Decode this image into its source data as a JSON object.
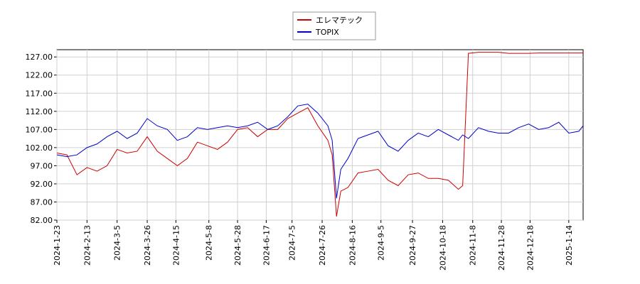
{
  "chart_data": {
    "type": "line",
    "x": [
      "2024-01-23",
      "2024-01-30",
      "2024-02-06",
      "2024-02-13",
      "2024-02-20",
      "2024-02-27",
      "2024-03-05",
      "2024-03-12",
      "2024-03-19",
      "2024-03-26",
      "2024-04-02",
      "2024-04-09",
      "2024-04-16",
      "2024-04-23",
      "2024-04-30",
      "2024-05-07",
      "2024-05-14",
      "2024-05-21",
      "2024-05-28",
      "2024-06-04",
      "2024-06-11",
      "2024-06-18",
      "2024-06-25",
      "2024-07-02",
      "2024-07-09",
      "2024-07-16",
      "2024-07-23",
      "2024-07-30",
      "2024-08-02",
      "2024-08-05",
      "2024-08-08",
      "2024-08-13",
      "2024-08-20",
      "2024-08-27",
      "2024-09-03",
      "2024-09-10",
      "2024-09-17",
      "2024-09-24",
      "2024-10-01",
      "2024-10-08",
      "2024-10-15",
      "2024-10-22",
      "2024-10-29",
      "2024-11-01",
      "2024-11-05",
      "2024-11-12",
      "2024-11-19",
      "2024-11-26",
      "2024-12-03",
      "2024-12-10",
      "2024-12-17",
      "2024-12-24",
      "2024-12-31",
      "2025-01-07",
      "2025-01-14",
      "2025-01-21",
      "2025-01-24"
    ],
    "series": [
      {
        "name": "エレマテック",
        "color": "#cc0000",
        "values": [
          100.5,
          100,
          94.5,
          96.5,
          95.5,
          97,
          101.5,
          100.5,
          101,
          105,
          101,
          99,
          97,
          99,
          103.5,
          102.5,
          101.5,
          103.5,
          107,
          107.5,
          105,
          107,
          107,
          110,
          111.5,
          113,
          108,
          104,
          100,
          83,
          90,
          91,
          95,
          95.5,
          96,
          93,
          91.5,
          94.5,
          95,
          93.5,
          93.5,
          93,
          90.5,
          91.5,
          128,
          128.3,
          128.3,
          128.3,
          128,
          128,
          128,
          128.1,
          128.1,
          128.1,
          128.1,
          128.1,
          128.1
        ]
      },
      {
        "name": "TOPIX",
        "color": "#0000cc",
        "values": [
          100,
          99.5,
          100,
          102,
          103,
          105,
          106.5,
          104.5,
          106,
          110,
          108,
          107,
          104,
          105,
          107.5,
          107,
          107.5,
          108,
          107.5,
          108,
          109,
          107,
          108,
          110.5,
          113.5,
          114,
          111.5,
          108,
          104,
          88,
          96,
          99,
          104.5,
          105.5,
          106.5,
          102.5,
          101,
          104,
          106,
          105,
          107,
          105.5,
          104,
          105.5,
          104.5,
          107.5,
          106.5,
          106,
          106,
          107.5,
          108.5,
          107,
          107.5,
          109,
          106,
          106.5,
          108
        ]
      }
    ],
    "xlim": [
      "2024-01-23",
      "2025-01-24"
    ],
    "xticks": [
      {
        "value": "2024-01-23",
        "label": "2024-1-23"
      },
      {
        "value": "2024-02-13",
        "label": "2024-2-13"
      },
      {
        "value": "2024-03-05",
        "label": "2024-3-5"
      },
      {
        "value": "2024-03-26",
        "label": "2024-3-26"
      },
      {
        "value": "2024-04-15",
        "label": "2024-4-15"
      },
      {
        "value": "2024-05-08",
        "label": "2024-5-8"
      },
      {
        "value": "2024-05-28",
        "label": "2024-5-28"
      },
      {
        "value": "2024-06-17",
        "label": "2024-6-17"
      },
      {
        "value": "2024-07-05",
        "label": "2024-7-5"
      },
      {
        "value": "2024-07-26",
        "label": "2024-7-26"
      },
      {
        "value": "2024-08-16",
        "label": "2024-8-16"
      },
      {
        "value": "2024-09-05",
        "label": "2024-9-5"
      },
      {
        "value": "2024-09-27",
        "label": "2024-9-27"
      },
      {
        "value": "2024-10-18",
        "label": "2024-10-18"
      },
      {
        "value": "2024-11-08",
        "label": "2024-11-8"
      },
      {
        "value": "2024-11-28",
        "label": "2024-11-28"
      },
      {
        "value": "2024-12-18",
        "label": "2024-12-18"
      },
      {
        "value": "2025-01-14",
        "label": "2025-1-14"
      }
    ],
    "ylim": [
      82,
      129
    ],
    "yticks": [
      {
        "value": 82,
        "label": "82.00"
      },
      {
        "value": 87,
        "label": "87.00"
      },
      {
        "value": 92,
        "label": "92.00"
      },
      {
        "value": 97,
        "label": "97.00"
      },
      {
        "value": 102,
        "label": "102.00"
      },
      {
        "value": 107,
        "label": "107.00"
      },
      {
        "value": 112,
        "label": "112.00"
      },
      {
        "value": 117,
        "label": "117.00"
      },
      {
        "value": 122,
        "label": "122.00"
      },
      {
        "value": 127,
        "label": "127.00"
      }
    ],
    "grid": true,
    "legend": "upper center"
  }
}
